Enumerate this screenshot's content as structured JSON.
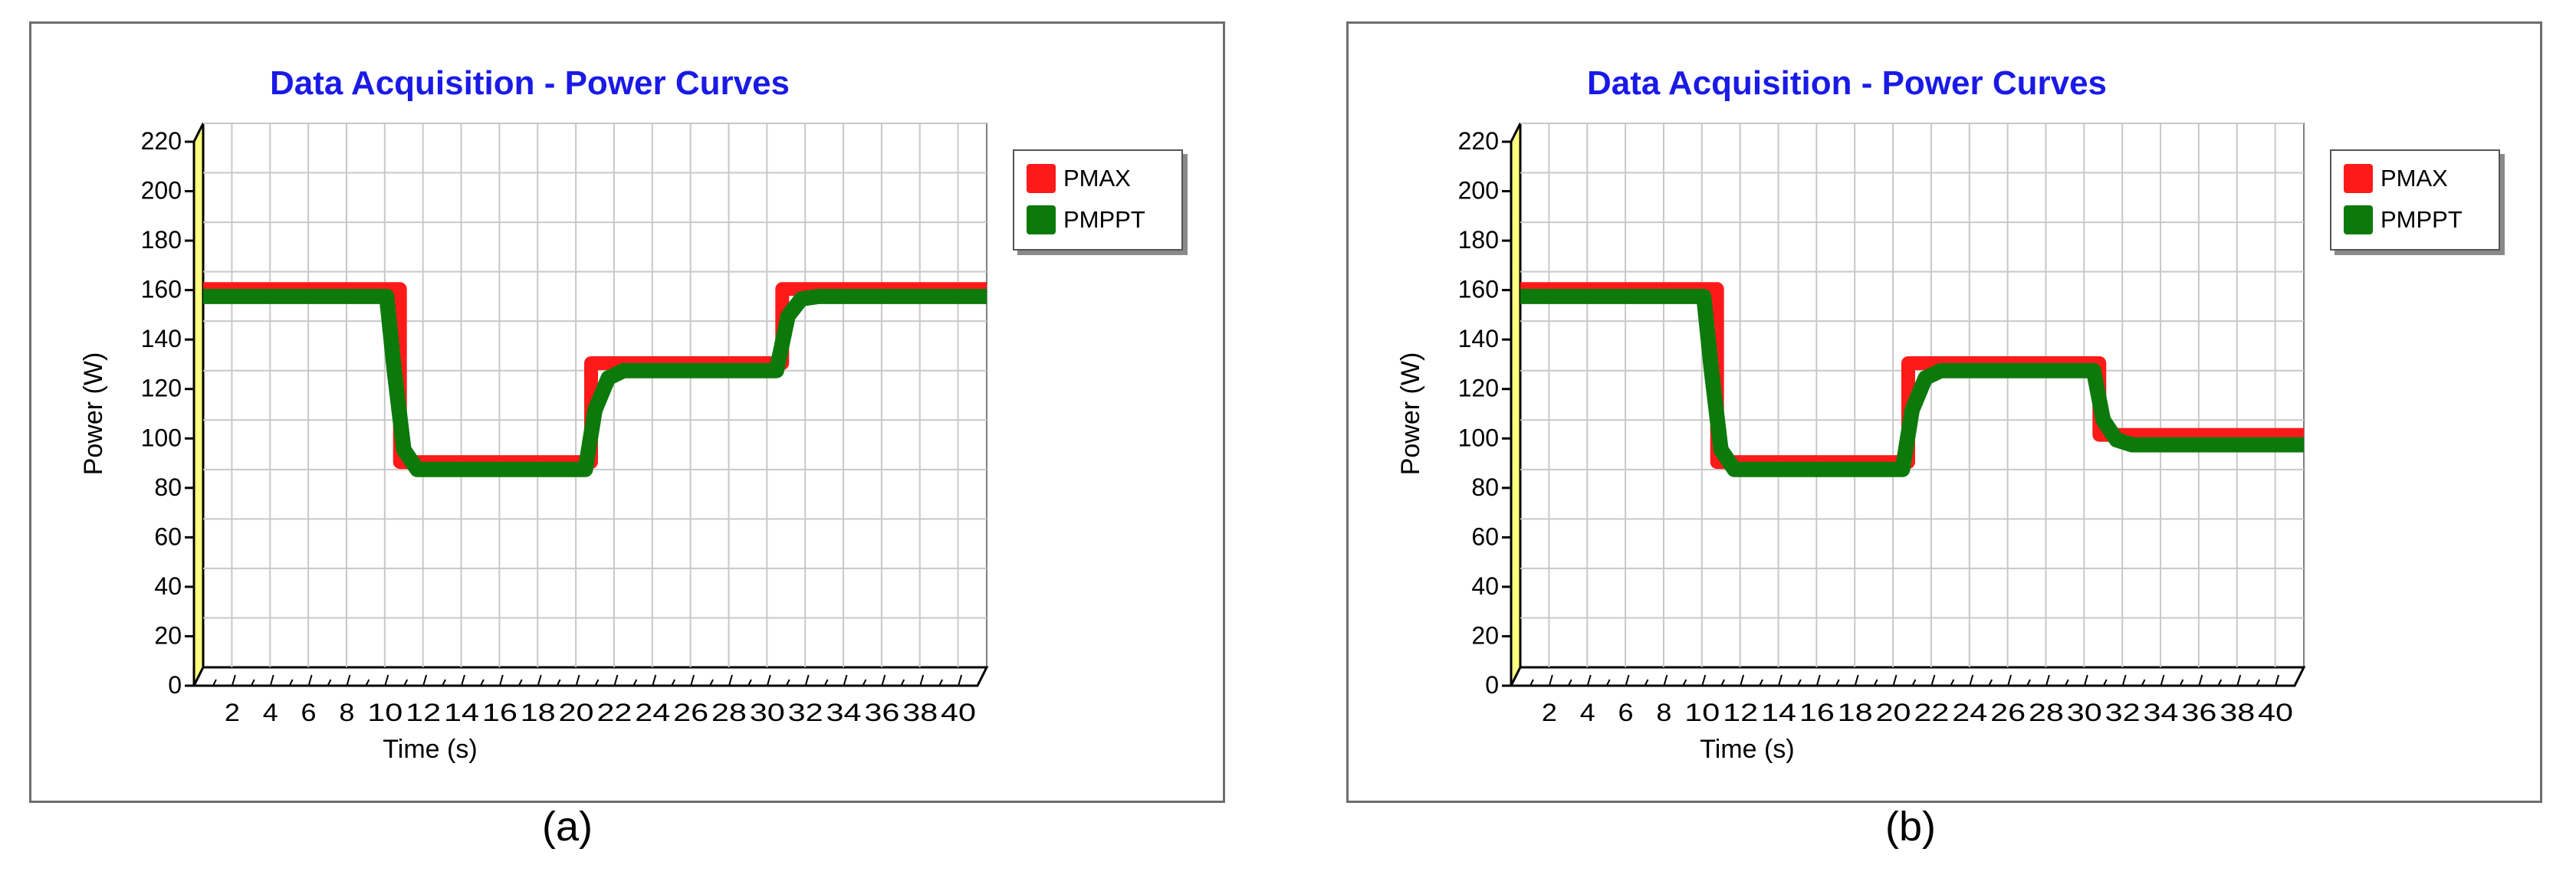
{
  "chart_data": [
    {
      "type": "line",
      "panel_label": "(a)",
      "title": "Data Acquisition - Power Curves",
      "xlabel": "Time (s)",
      "ylabel": "Power (W)",
      "xlim": [
        0,
        41
      ],
      "ylim": [
        0,
        220
      ],
      "yticks": [
        0,
        20,
        40,
        60,
        80,
        100,
        120,
        140,
        160,
        180,
        200,
        220
      ],
      "xticks": [
        2,
        4,
        6,
        8,
        10,
        12,
        14,
        16,
        18,
        20,
        22,
        24,
        26,
        28,
        30,
        32,
        34,
        36,
        38,
        40
      ],
      "grid": true,
      "legend_position": "top-right",
      "series": [
        {
          "name": "PMAX",
          "color": "#ff1a1a",
          "x": [
            0,
            10.3,
            10.3,
            20.3,
            20.3,
            30.3,
            30.3,
            41
          ],
          "y": [
            153,
            153,
            83,
            83,
            123,
            123,
            153,
            153
          ]
        },
        {
          "name": "PMPPT",
          "color": "#0b7a0b",
          "x": [
            0,
            9.6,
            10.0,
            10.5,
            11.2,
            20.0,
            20.5,
            21.2,
            22.0,
            30.0,
            30.6,
            31.3,
            32.2,
            41
          ],
          "y": [
            150,
            150,
            120,
            88,
            80,
            80,
            104,
            117,
            120,
            120,
            142,
            149,
            150,
            150
          ]
        }
      ]
    },
    {
      "type": "line",
      "panel_label": "(b)",
      "title": "Data Acquisition - Power Curves",
      "xlabel": "Time (s)",
      "ylabel": "Power (W)",
      "xlim": [
        0,
        41
      ],
      "ylim": [
        0,
        220
      ],
      "yticks": [
        0,
        20,
        40,
        60,
        80,
        100,
        120,
        140,
        160,
        180,
        200,
        220
      ],
      "xticks": [
        2,
        4,
        6,
        8,
        10,
        12,
        14,
        16,
        18,
        20,
        22,
        24,
        26,
        28,
        30,
        32,
        34,
        36,
        38,
        40
      ],
      "grid": true,
      "legend_position": "top-right",
      "series": [
        {
          "name": "PMAX",
          "color": "#ff1a1a",
          "x": [
            0,
            10.3,
            10.3,
            20.3,
            20.3,
            30.3,
            30.3,
            41
          ],
          "y": [
            153,
            153,
            83,
            83,
            123,
            123,
            94,
            94
          ]
        },
        {
          "name": "PMPPT",
          "color": "#0b7a0b",
          "x": [
            0,
            9.6,
            10.0,
            10.5,
            11.2,
            20.0,
            20.5,
            21.2,
            22.0,
            30.0,
            30.5,
            31.2,
            32.0,
            41
          ],
          "y": [
            150,
            150,
            120,
            88,
            80,
            80,
            104,
            117,
            120,
            120,
            100,
            92,
            90,
            90
          ]
        }
      ]
    }
  ]
}
